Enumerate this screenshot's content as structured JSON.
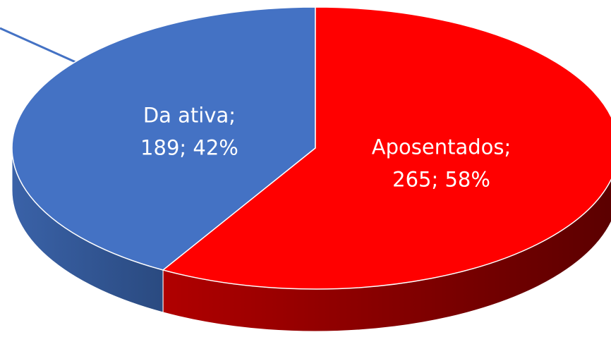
{
  "chart_data": {
    "type": "pie3d",
    "values": [
      189,
      265
    ],
    "value_labels": [
      [
        "Da ativa;",
        "189; 42%"
      ],
      [
        "Aposentados;",
        "265; 58%"
      ]
    ],
    "colors": [
      "#4472c4",
      "#ff0000"
    ]
  }
}
